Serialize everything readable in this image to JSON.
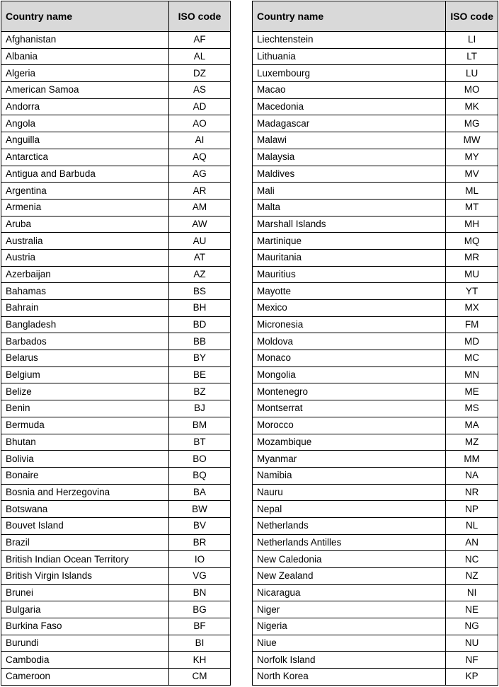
{
  "header": {
    "name": "Country name",
    "code": "ISO code"
  },
  "tables": [
    {
      "rows": [
        [
          "Afghanistan",
          "AF"
        ],
        [
          "Albania",
          "AL"
        ],
        [
          "Algeria",
          "DZ"
        ],
        [
          "American Samoa",
          "AS"
        ],
        [
          "Andorra",
          "AD"
        ],
        [
          "Angola",
          "AO"
        ],
        [
          "Anguilla",
          "AI"
        ],
        [
          "Antarctica",
          "AQ"
        ],
        [
          "Antigua and Barbuda",
          "AG"
        ],
        [
          "Argentina",
          "AR"
        ],
        [
          "Armenia",
          "AM"
        ],
        [
          "Aruba",
          "AW"
        ],
        [
          "Australia",
          "AU"
        ],
        [
          "Austria",
          "AT"
        ],
        [
          "Azerbaijan",
          "AZ"
        ],
        [
          "Bahamas",
          "BS"
        ],
        [
          "Bahrain",
          "BH"
        ],
        [
          "Bangladesh",
          "BD"
        ],
        [
          "Barbados",
          "BB"
        ],
        [
          "Belarus",
          "BY"
        ],
        [
          "Belgium",
          "BE"
        ],
        [
          "Belize",
          "BZ"
        ],
        [
          "Benin",
          "BJ"
        ],
        [
          "Bermuda",
          "BM"
        ],
        [
          "Bhutan",
          "BT"
        ],
        [
          "Bolivia",
          "BO"
        ],
        [
          "Bonaire",
          "BQ"
        ],
        [
          "Bosnia and Herzegovina",
          "BA"
        ],
        [
          "Botswana",
          "BW"
        ],
        [
          "Bouvet Island",
          "BV"
        ],
        [
          "Brazil",
          "BR"
        ],
        [
          "British Indian Ocean Territory",
          "IO"
        ],
        [
          "British Virgin Islands",
          "VG"
        ],
        [
          "Brunei",
          "BN"
        ],
        [
          "Bulgaria",
          "BG"
        ],
        [
          "Burkina Faso",
          "BF"
        ],
        [
          "Burundi",
          "BI"
        ],
        [
          "Cambodia",
          "KH"
        ],
        [
          "Cameroon",
          "CM"
        ]
      ]
    },
    {
      "rows": [
        [
          "Liechtenstein",
          "LI"
        ],
        [
          "Lithuania",
          "LT"
        ],
        [
          "Luxembourg",
          "LU"
        ],
        [
          "Macao",
          "MO"
        ],
        [
          "Macedonia",
          "MK"
        ],
        [
          "Madagascar",
          "MG"
        ],
        [
          "Malawi",
          "MW"
        ],
        [
          "Malaysia",
          "MY"
        ],
        [
          "Maldives",
          "MV"
        ],
        [
          "Mali",
          "ML"
        ],
        [
          "Malta",
          "MT"
        ],
        [
          "Marshall Islands",
          "MH"
        ],
        [
          "Martinique",
          "MQ"
        ],
        [
          "Mauritania",
          "MR"
        ],
        [
          "Mauritius",
          "MU"
        ],
        [
          "Mayotte",
          "YT"
        ],
        [
          "Mexico",
          "MX"
        ],
        [
          "Micronesia",
          "FM"
        ],
        [
          "Moldova",
          "MD"
        ],
        [
          "Monaco",
          "MC"
        ],
        [
          "Mongolia",
          "MN"
        ],
        [
          "Montenegro",
          "ME"
        ],
        [
          "Montserrat",
          "MS"
        ],
        [
          "Morocco",
          "MA"
        ],
        [
          "Mozambique",
          "MZ"
        ],
        [
          "Myanmar",
          "MM"
        ],
        [
          "Namibia",
          "NA"
        ],
        [
          "Nauru",
          "NR"
        ],
        [
          "Nepal",
          "NP"
        ],
        [
          "Netherlands",
          "NL"
        ],
        [
          "Netherlands Antilles",
          "AN"
        ],
        [
          "New Caledonia",
          "NC"
        ],
        [
          "New Zealand",
          "NZ"
        ],
        [
          "Nicaragua",
          "NI"
        ],
        [
          "Niger",
          "NE"
        ],
        [
          "Nigeria",
          "NG"
        ],
        [
          "Niue",
          "NU"
        ],
        [
          "Norfolk Island",
          "NF"
        ],
        [
          "North Korea",
          "KP"
        ]
      ]
    }
  ]
}
